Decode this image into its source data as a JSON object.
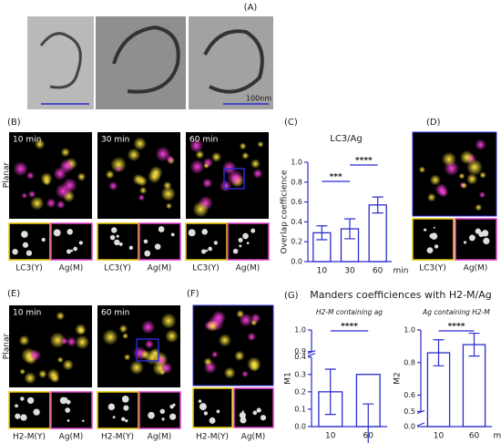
{
  "panels": {
    "A": "(A)",
    "B": "(B)",
    "C": "(C)",
    "D": "(D)",
    "E": "(E)",
    "F": "(F)",
    "G": "(G)",
    "scale": "100nm",
    "t10": "10 min",
    "t30": "30 min",
    "t60": "60 min",
    "planar": "Planar",
    "lc3": "LC3(Y)",
    "ag": "Ag(M)",
    "h2m": "H2-M(Y)"
  },
  "chart_data": [
    {
      "type": "bar",
      "title": "LC3/Ag",
      "ylabel": "Overlap coefficience",
      "xlabel": "min",
      "categories": [
        "10",
        "30",
        "60"
      ],
      "values": [
        0.29,
        0.33,
        0.57
      ],
      "errors": [
        0.07,
        0.1,
        0.08
      ],
      "ylim": [
        0,
        1.0
      ],
      "yticks": [
        {
          "value": 0,
          "label": "0.0"
        },
        0.2,
        0.4,
        0.6,
        0.8,
        {
          "value": 1,
          "label": "1.0"
        }
      ],
      "significance": [
        {
          "between": [
            "10",
            "30"
          ],
          "label": "***"
        },
        {
          "between": [
            "30",
            "60"
          ],
          "label": "****"
        }
      ]
    },
    {
      "type": "bar",
      "title": "Manders coefficiences with H2-M/Ag",
      "subtitle": "H2-M containing ag",
      "ylabel": "M1",
      "categories": [
        "10",
        "60"
      ],
      "values": [
        0.2,
        0.3
      ],
      "errors": [
        0.13,
        0.17
      ],
      "ylim": [
        0,
        1.0
      ],
      "axis_break": [
        0.4,
        0.9
      ],
      "yticks": [
        {
          "value": 0,
          "label": "0.0"
        },
        0.1,
        0.2,
        0.3,
        0.4,
        0.9,
        {
          "value": 1,
          "label": "1.0"
        }
      ],
      "significance": [
        {
          "between": [
            "10",
            "60"
          ],
          "label": "****"
        }
      ]
    },
    {
      "type": "bar",
      "subtitle": "Ag containing H2-M",
      "ylabel": "M2",
      "xlabel": "min",
      "categories": [
        "10",
        "60"
      ],
      "values": [
        0.86,
        0.91
      ],
      "errors": [
        0.08,
        0.07
      ],
      "ylim": [
        0,
        1.0
      ],
      "axis_break": [
        0.0,
        0.5
      ],
      "yticks": [
        {
          "value": 0,
          "label": "0.0"
        },
        0.5,
        0.6,
        0.8,
        {
          "value": 1,
          "label": "1.0"
        }
      ],
      "significance": [
        {
          "between": [
            "10",
            "60"
          ],
          "label": "****"
        }
      ]
    }
  ]
}
